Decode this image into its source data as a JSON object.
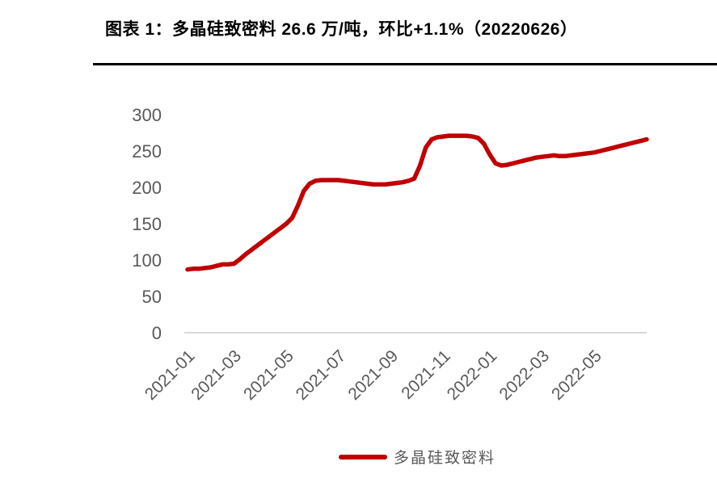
{
  "title": "图表 1：多晶硅致密料 26.6 万/吨，环比+1.1%（20220626）",
  "colors": {
    "accent_red": "#c00000",
    "axis_text": "#595959",
    "baseline": "#d9d9d9",
    "title_text": "#000000",
    "divider": "#000000"
  },
  "legend": {
    "label": "多晶硅致密料"
  },
  "chart_data": {
    "type": "line",
    "title": "图表 1：多晶硅致密料 26.6 万/吨，环比+1.1%（20220626）",
    "xlabel": "",
    "ylabel": "",
    "ylim": [
      0,
      300
    ],
    "yticks": [
      0,
      50,
      100,
      150,
      200,
      250,
      300
    ],
    "grid": false,
    "legend_position": "bottom-center",
    "x_unit": "week",
    "x_tick_labels": [
      "2021-01",
      "2021-03",
      "2021-05",
      "2021-07",
      "2021-09",
      "2021-11",
      "2022-01",
      "2022-03",
      "2022-05"
    ],
    "x_tick_indices": [
      0,
      8,
      17,
      26,
      35,
      44,
      52,
      61,
      70
    ],
    "series": [
      {
        "name": "多晶硅致密料",
        "color": "#c00000",
        "values": [
          87,
          88,
          88,
          89,
          90,
          92,
          94,
          94,
          95,
          101,
          108,
          114,
          120,
          126,
          132,
          138,
          144,
          150,
          158,
          175,
          195,
          205,
          209,
          210,
          210,
          210,
          210,
          209,
          208,
          207,
          206,
          205,
          204,
          204,
          204,
          205,
          206,
          207,
          209,
          212,
          230,
          255,
          266,
          269,
          270,
          271,
          271,
          271,
          271,
          270,
          268,
          260,
          245,
          233,
          230,
          231,
          233,
          235,
          237,
          239,
          241,
          242,
          243,
          244,
          243,
          243,
          244,
          245,
          246,
          247,
          248,
          250,
          252,
          254,
          256,
          258,
          260,
          262,
          264,
          266
        ]
      }
    ]
  }
}
